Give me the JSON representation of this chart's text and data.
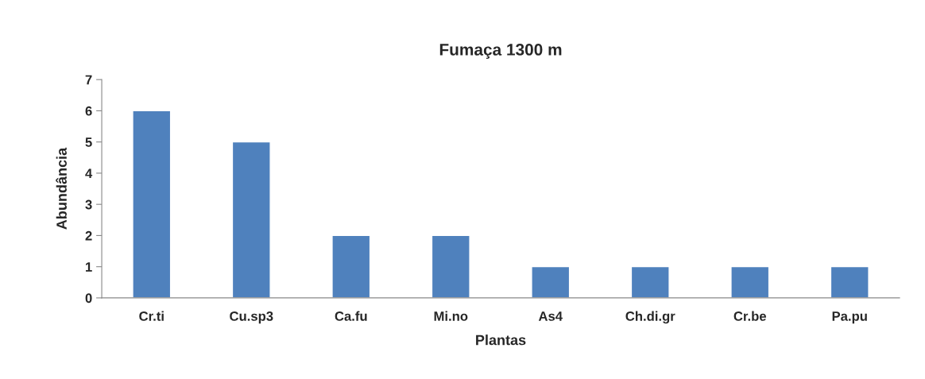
{
  "chart_data": {
    "type": "bar",
    "title": "Fumaça 1300 m",
    "xlabel": "Plantas",
    "ylabel": "Abundância",
    "categories": [
      "Cr.ti",
      "Cu.sp3",
      "Ca.fu",
      "Mi.no",
      "As4",
      "Ch.di.gr",
      "Cr.be",
      "Pa.pu"
    ],
    "values": [
      6,
      5,
      2,
      2,
      1,
      1,
      1,
      1
    ],
    "color": "#4f81bd",
    "ylim": [
      0,
      7
    ],
    "yticks": [
      0,
      1,
      2,
      3,
      4,
      5,
      6,
      7
    ],
    "grid": false,
    "legend": false
  }
}
